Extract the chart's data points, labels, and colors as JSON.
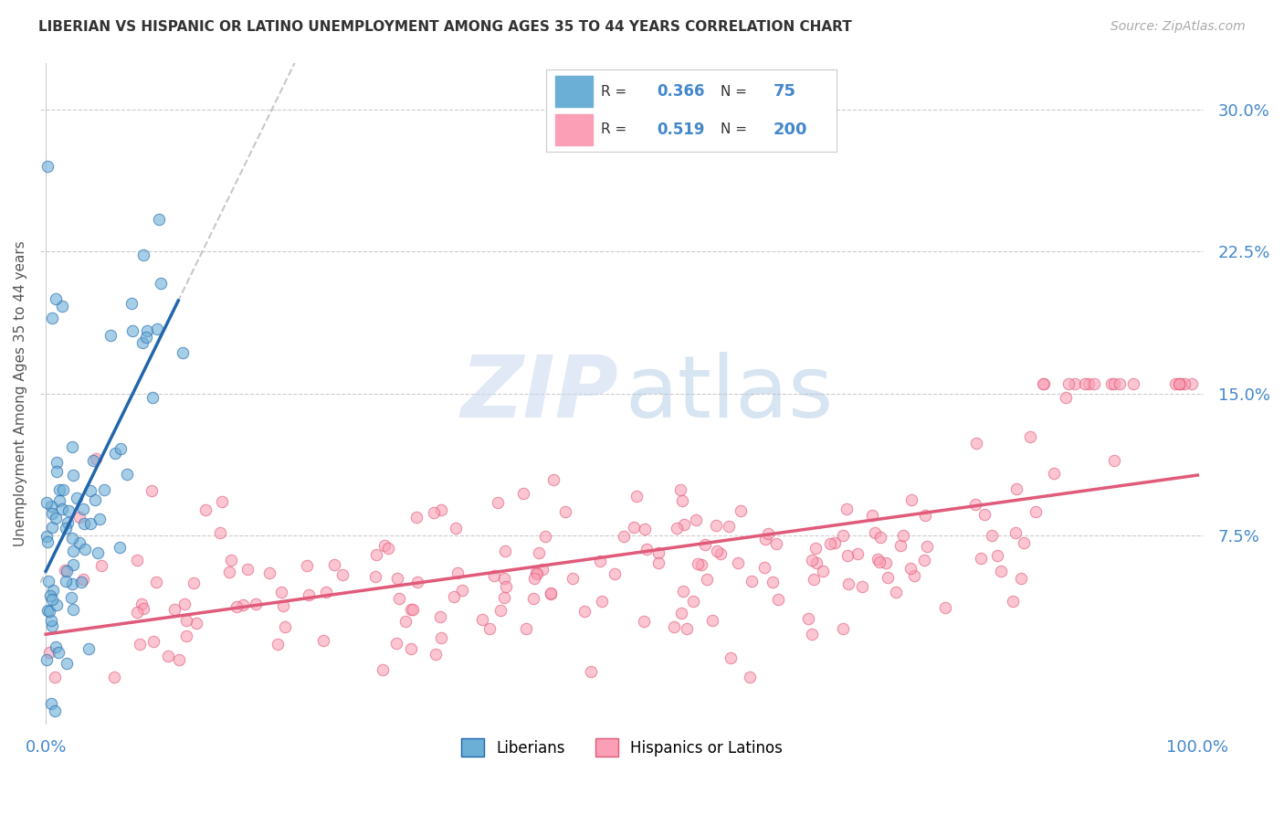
{
  "title": "LIBERIAN VS HISPANIC OR LATINO UNEMPLOYMENT AMONG AGES 35 TO 44 YEARS CORRELATION CHART",
  "source": "Source: ZipAtlas.com",
  "ylabel": "Unemployment Among Ages 35 to 44 years",
  "xlim": [
    -0.005,
    1.005
  ],
  "ylim": [
    -0.025,
    0.325
  ],
  "yticks": [
    0.075,
    0.15,
    0.225,
    0.3
  ],
  "yticklabels": [
    "7.5%",
    "15.0%",
    "22.5%",
    "30.0%"
  ],
  "blue_color": "#6baed6",
  "pink_color": "#fa9fb5",
  "blue_line_color": "#2166ac",
  "pink_line_color": "#e05a7a",
  "dashed_line_color": "#bbbbbb",
  "legend_R_blue": "0.366",
  "legend_N_blue": "75",
  "legend_R_pink": "0.519",
  "legend_N_pink": "200",
  "legend_label_blue": "Liberians",
  "legend_label_pink": "Hispanics or Latinos",
  "blue_N": 75,
  "pink_N": 200,
  "random_seed_blue": 42,
  "random_seed_pink": 123
}
